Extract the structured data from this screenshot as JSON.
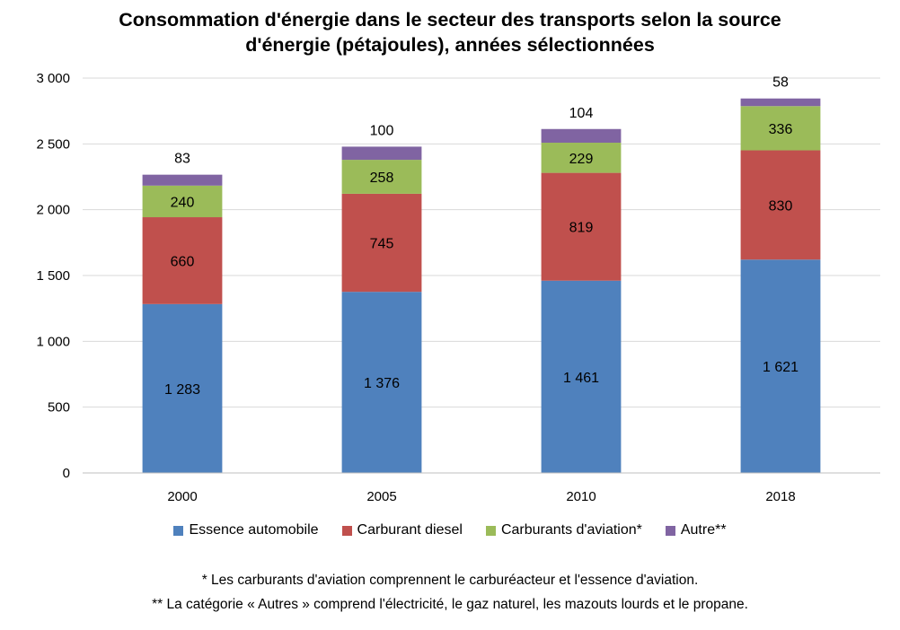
{
  "chart_data": {
    "type": "bar",
    "stacked": true,
    "title_line1": "Consommation d'énergie dans le secteur des transports selon la source",
    "title_line2": "d'énergie (pétajoules), années sélectionnées",
    "categories": [
      "2000",
      "2005",
      "2010",
      "2018"
    ],
    "series": [
      {
        "name": "Essence automobile",
        "color": "#4f81bd",
        "values": [
          1283,
          1376,
          1461,
          1621
        ],
        "labels": [
          "1 283",
          "1 376",
          "1 461",
          "1 621"
        ]
      },
      {
        "name": "Carburant diesel",
        "color": "#c0504d",
        "values": [
          660,
          745,
          819,
          830
        ],
        "labels": [
          "660",
          "745",
          "819",
          "830"
        ]
      },
      {
        "name": "Carburants d'aviation*",
        "color": "#9bbb59",
        "values": [
          240,
          258,
          229,
          336
        ],
        "labels": [
          "240",
          "258",
          "229",
          "336"
        ]
      },
      {
        "name": "Autre**",
        "color": "#8064a2",
        "values": [
          83,
          100,
          104,
          58
        ],
        "labels": [
          "83",
          "100",
          "104",
          "58"
        ]
      }
    ],
    "ylim": [
      0,
      3000
    ],
    "yticks": [
      0,
      500,
      1000,
      1500,
      2000,
      2500,
      3000
    ],
    "ytick_labels": [
      "0",
      "500",
      "1 000",
      "1 500",
      "2 000",
      "2 500",
      "3 000"
    ],
    "grid": true,
    "legend_position": "bottom"
  },
  "footnotes": [
    "* Les carburants d'aviation comprennent le carburéacteur et l'essence d'aviation.",
    "** La catégorie « Autres » comprend l'électricité, le gaz naturel, les mazouts lourds et le propane."
  ]
}
